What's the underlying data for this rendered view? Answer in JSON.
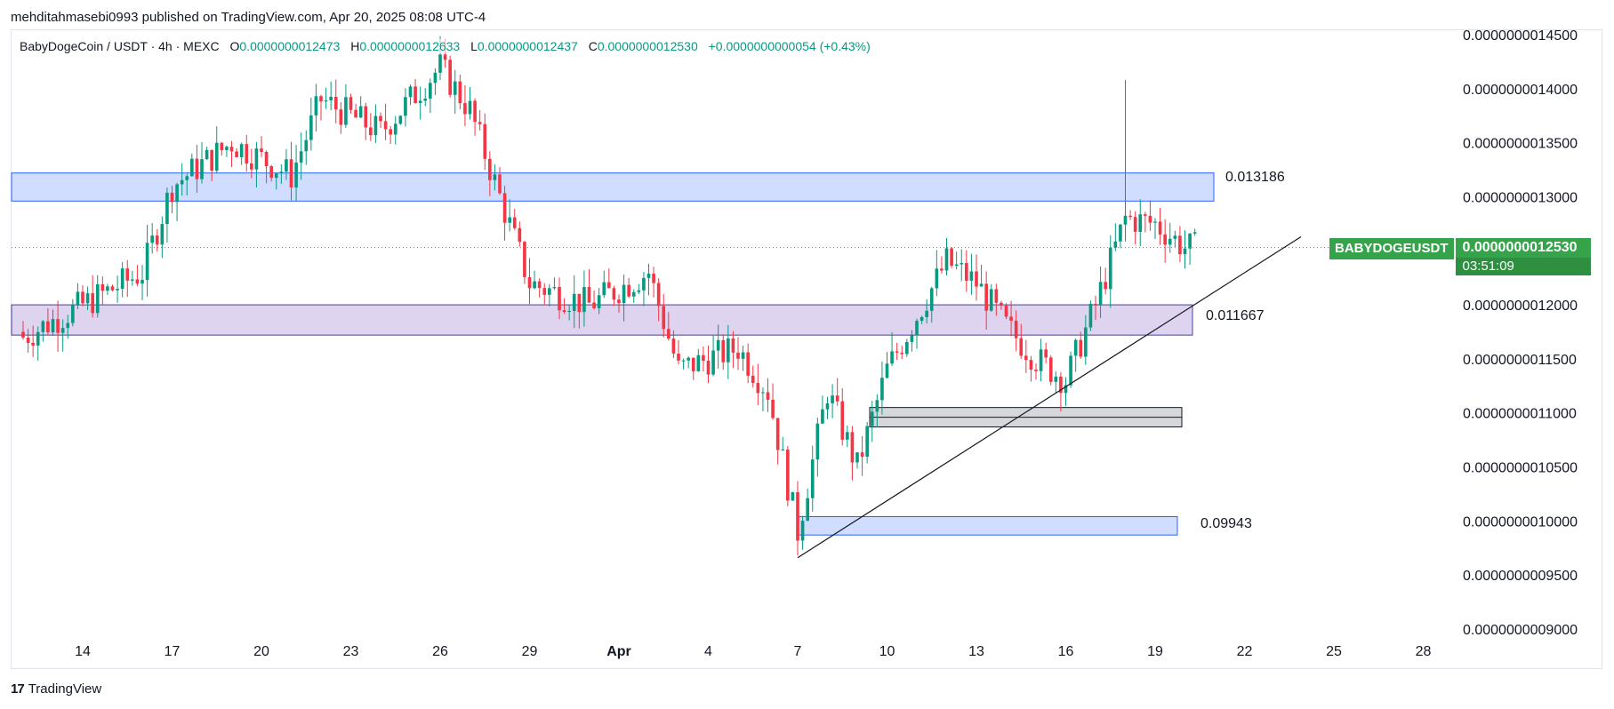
{
  "publisher_line": "mehditahmasebi0993 published on TradingView.com, Apr 20, 2025 08:08 UTC-4",
  "legend": {
    "symbol": "BabyDogeCoin / USDT · 4h · MEXC",
    "o_label": "O",
    "o_value": "0.0000000012473",
    "h_label": "H",
    "h_value": "0.0000000012633",
    "l_label": "L",
    "l_value": "0.0000000012437",
    "c_label": "C",
    "c_value": "0.0000000012530",
    "change": "+0.0000000000054 (+0.43%)"
  },
  "zone_labels": {
    "top": "0.013186",
    "mid": "0.011667",
    "low": "0.09943"
  },
  "price_tag": {
    "symbol": "BABYDOGEUSDT",
    "price": "0.0000000012530",
    "timer": "03:51:09"
  },
  "footer": {
    "brand": "TradingView",
    "logo_glyph": "17"
  },
  "colors": {
    "up": "#089981",
    "down": "#f23645",
    "zone_blue": "#2962ff",
    "zone_purple": "#5b4fb8",
    "zone_gray": "#787b86",
    "tag": "#34a34a"
  },
  "chart_data": {
    "type": "candlestick",
    "title": "BabyDogeCoin / USDT · 4h · MEXC",
    "y_axis": {
      "ticks": [
        "0.0000000014500",
        "0.0000000014000",
        "0.0000000013500",
        "0.0000000013000",
        "0.0000000012000",
        "0.0000000011500",
        "0.0000000011000",
        "0.0000000010500",
        "0.0000000010000",
        "0.0000000009500",
        "0.0000000009000"
      ],
      "ylim": [
        9e-10,
        1.45e-09
      ]
    },
    "x_axis": {
      "ticks": [
        "14",
        "17",
        "20",
        "23",
        "26",
        "29",
        "Apr",
        "4",
        "7",
        "10",
        "13",
        "16",
        "19",
        "22",
        "25",
        "28"
      ]
    },
    "last_price": 1.253e-09,
    "key_points": [
      {
        "date": "Mar 12",
        "close": 1.17
      },
      {
        "date": "Mar 14",
        "close": 1.2
      },
      {
        "date": "Mar 16",
        "close": 1.23
      },
      {
        "date": "Mar 17",
        "close": 1.31
      },
      {
        "date": "Mar 19",
        "close": 1.35
      },
      {
        "date": "Mar 21",
        "close": 1.32
      },
      {
        "date": "Mar 22",
        "close": 1.39
      },
      {
        "date": "Mar 24",
        "close": 1.36
      },
      {
        "date": "Mar 26",
        "close": 1.42
      },
      {
        "date": "Mar 27",
        "close": 1.38
      },
      {
        "date": "Mar 28",
        "close": 1.3
      },
      {
        "date": "Mar 29",
        "close": 1.22
      },
      {
        "date": "Mar 31",
        "close": 1.2
      },
      {
        "date": "Apr 2",
        "close": 1.23
      },
      {
        "date": "Apr 3",
        "close": 1.14
      },
      {
        "date": "Apr 5",
        "close": 1.16
      },
      {
        "date": "Apr 6",
        "close": 1.12
      },
      {
        "date": "Apr 7",
        "close": 0.99
      },
      {
        "date": "Apr 8",
        "close": 1.12
      },
      {
        "date": "Apr 9",
        "close": 1.05
      },
      {
        "date": "Apr 10",
        "close": 1.14
      },
      {
        "date": "Apr 11",
        "close": 1.19
      },
      {
        "date": "Apr 12",
        "close": 1.24
      },
      {
        "date": "Apr 13",
        "close": 1.22
      },
      {
        "date": "Apr 14",
        "close": 1.18
      },
      {
        "date": "Apr 15",
        "close": 1.15
      },
      {
        "date": "Apr 16",
        "close": 1.13
      },
      {
        "date": "Apr 17",
        "close": 1.2
      },
      {
        "date": "Apr 18",
        "close": 1.28
      },
      {
        "date": "Apr 19",
        "close": 1.275
      },
      {
        "date": "Apr 20",
        "close": 1.253
      }
    ],
    "value_unit": "1e-9 USDT",
    "zones": [
      {
        "name": "resistance",
        "from": 1.296,
        "to": 1.322,
        "label": "0.013186"
      },
      {
        "name": "support",
        "from": 1.172,
        "to": 1.2,
        "label": "0.011667"
      },
      {
        "name": "demand",
        "from": 1.087,
        "to": 1.105
      },
      {
        "name": "low",
        "from": 0.987,
        "to": 1.004,
        "label": "0.09943"
      }
    ],
    "trendline": {
      "from": {
        "date": "Apr 7",
        "price": 0.966
      },
      "to": {
        "date": "Apr 24",
        "price": 1.263
      }
    }
  }
}
